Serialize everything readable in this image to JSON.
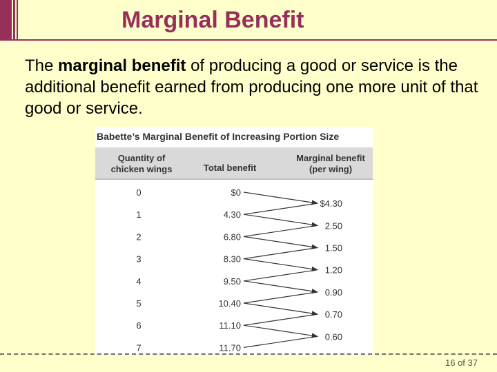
{
  "slide": {
    "title": "Marginal Benefit",
    "body": {
      "pre": "The ",
      "bold": "marginal benefit",
      "post": " of producing a good or service is the additional benefit earned from producing one more unit of that good or service."
    },
    "page_number": "16 of 37"
  },
  "table": {
    "title": "Babette’s Marginal Benefit of Increasing Portion Size",
    "headers": {
      "quantity": [
        "Quantity of",
        "chicken wings"
      ],
      "total": "Total benefit",
      "marginal": [
        "Marginal benefit",
        "(per wing)"
      ]
    },
    "quantities": [
      "0",
      "1",
      "2",
      "3",
      "4",
      "5",
      "6",
      "7"
    ],
    "total_benefit": [
      "$0",
      "4.30",
      "6.80",
      "8.30",
      "9.50",
      "10.40",
      "11.10",
      "11.70"
    ],
    "marginal_benefit": [
      "$4.30",
      "2.50",
      "1.50",
      "1.20",
      "0.90",
      "0.70",
      "0.60"
    ]
  }
}
